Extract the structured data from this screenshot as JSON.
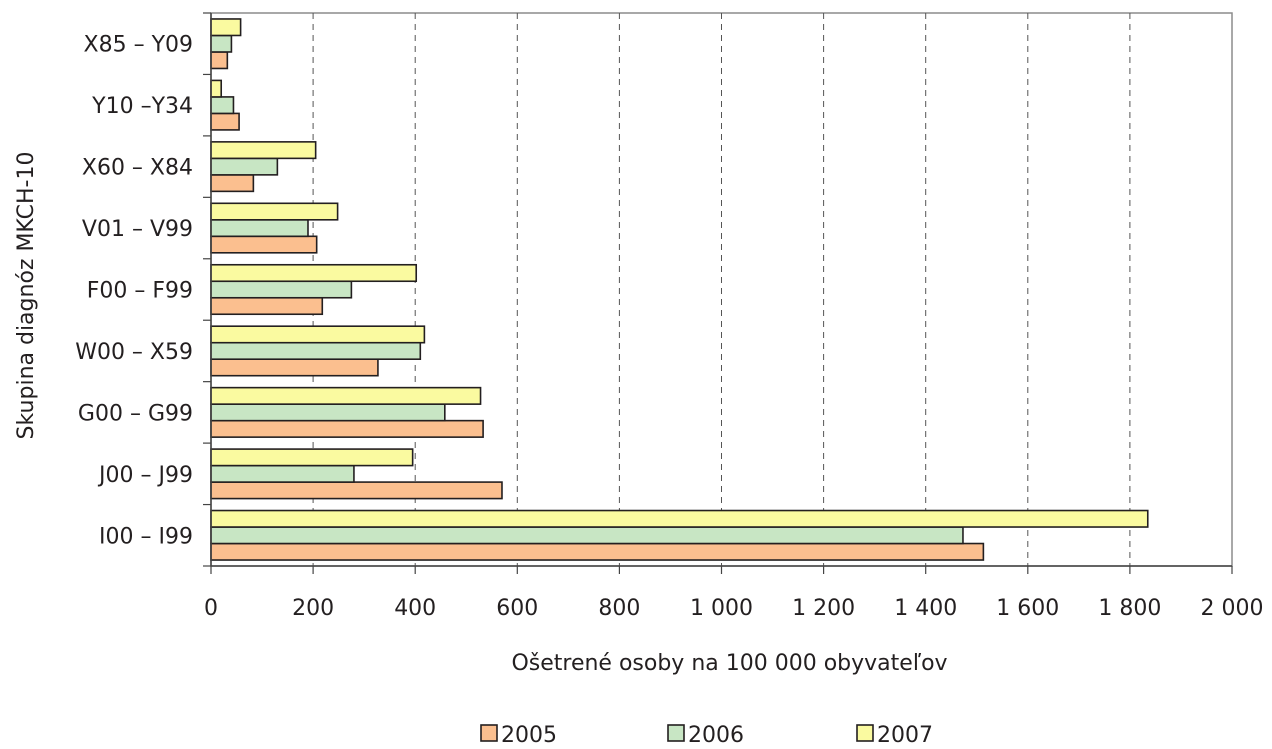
{
  "chart_data": {
    "type": "bar",
    "orientation": "horizontal",
    "title": "",
    "xlabel": "Ošetrené osoby na 100 000 obyvateľov",
    "ylabel": "Skupina diagnóz MKCH-10",
    "xlim": [
      0,
      2000
    ],
    "x_ticks": [
      0,
      200,
      400,
      600,
      800,
      1000,
      1200,
      1400,
      1600,
      1800,
      2000
    ],
    "x_tick_labels": [
      "0",
      "200",
      "400",
      "600",
      "800",
      "1 000",
      "1 200",
      "1 400",
      "1 600",
      "1 800",
      "2 000"
    ],
    "grid": "vertical-dashed",
    "legend_position": "bottom",
    "categories": [
      "X85 – Y09",
      "Y10 –Y34",
      "X60 – X84",
      "V01 – V99",
      "F00 – F99",
      "W00 – X59",
      "G00 – G99",
      "J00 – J99",
      "I00 – I99"
    ],
    "series": [
      {
        "name": "2005",
        "color": "#fbbf8f",
        "values": [
          32,
          55,
          83,
          207,
          218,
          327,
          533,
          570,
          1513
        ]
      },
      {
        "name": "2006",
        "color": "#c8e6c4",
        "values": [
          40,
          44,
          130,
          190,
          275,
          410,
          458,
          280,
          1473
        ]
      },
      {
        "name": "2007",
        "color": "#fafaa0",
        "values": [
          58,
          20,
          205,
          248,
          402,
          418,
          528,
          395,
          1835
        ]
      }
    ]
  }
}
